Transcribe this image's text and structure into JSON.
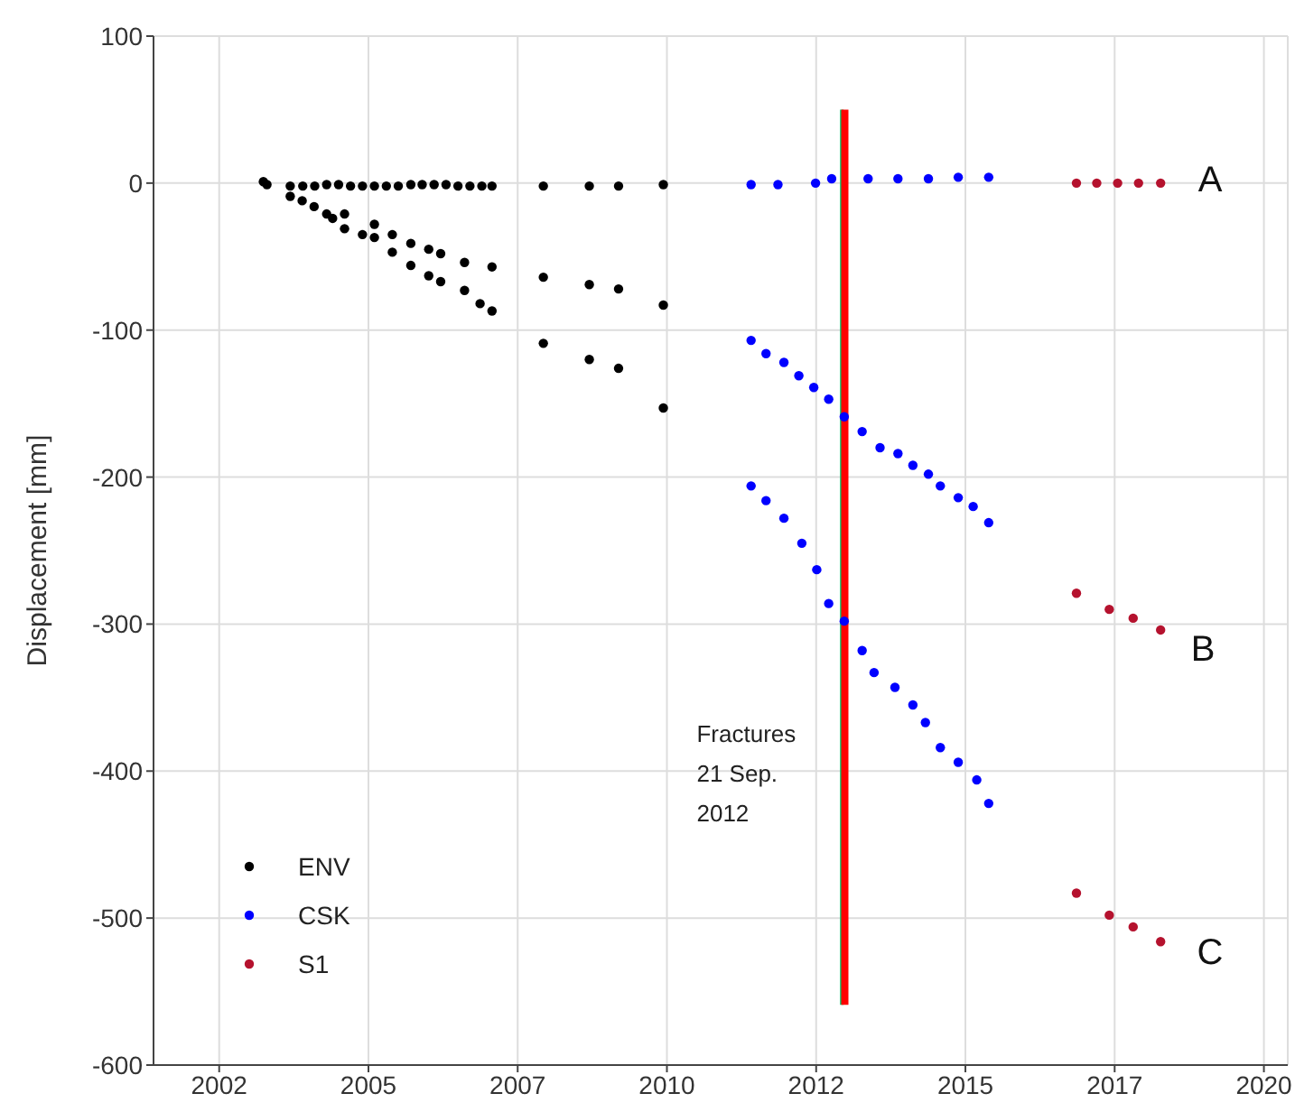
{
  "chart_data": {
    "type": "scatter",
    "ylabel": "Displacement [mm]",
    "xlim": [
      2001.4,
      2020.4
    ],
    "ylim": [
      -600,
      100
    ],
    "xticks": [
      {
        "value": 2002.5,
        "label": "2002"
      },
      {
        "value": 2005,
        "label": "2005"
      },
      {
        "value": 2007.5,
        "label": "2007"
      },
      {
        "value": 2010,
        "label": "2010"
      },
      {
        "value": 2012.5,
        "label": "2012"
      },
      {
        "value": 2015,
        "label": "2015"
      },
      {
        "value": 2017.5,
        "label": "2017"
      },
      {
        "value": 2020,
        "label": "2020"
      }
    ],
    "yticks": [
      -600,
      -500,
      -400,
      -300,
      -200,
      -100,
      0,
      100
    ],
    "grid": true,
    "legend": "bottom left",
    "marker": "circle",
    "series": [
      {
        "name": "ENV",
        "color": "#000000",
        "x": [
          2003.24,
          2003.3,
          2003.69,
          2003.9,
          2004.1,
          2004.3,
          2004.5,
          2004.7,
          2004.9,
          2005.1,
          2005.3,
          2005.5,
          2005.71,
          2005.9,
          2006.1,
          2006.3,
          2006.5,
          2006.7,
          2006.9,
          2007.07,
          2007.93,
          2008.7,
          2009.19,
          2009.94,
          2003.69,
          2003.89,
          2004.09,
          2004.3,
          2004.4,
          2004.6,
          2005.1,
          2005.4,
          2005.71,
          2006.01,
          2006.21,
          2006.61,
          2007.07,
          2007.93,
          2008.7,
          2009.19,
          2009.94,
          2004.6,
          2004.9,
          2005.1,
          2005.4,
          2005.71,
          2006.01,
          2006.21,
          2006.61,
          2006.87,
          2007.07,
          2007.93,
          2008.7,
          2009.19,
          2009.94
        ],
        "values": [
          1,
          -1,
          -2,
          -2,
          -2,
          -1,
          -1,
          -2,
          -2,
          -2,
          -2,
          -2,
          -1,
          -1,
          -1,
          -1,
          -2,
          -2,
          -2,
          -2,
          -2,
          -2,
          -2,
          -1,
          -9,
          -12,
          -16,
          -21,
          -24,
          -21,
          -28,
          -35,
          -41,
          -45,
          -48,
          -54,
          -57,
          -64,
          -69,
          -72,
          -83,
          -31,
          -35,
          -37,
          -47,
          -56,
          -63,
          -67,
          -73,
          -82,
          -87,
          -109,
          -120,
          -126,
          -153
        ]
      },
      {
        "name": "CSK",
        "color": "#0000ff",
        "x": [
          2011.41,
          2011.86,
          2012.49,
          2012.76,
          2013.37,
          2013.87,
          2014.38,
          2014.88,
          2015.39,
          2011.41,
          2011.66,
          2011.96,
          2012.21,
          2012.46,
          2012.71,
          2012.97,
          2013.27,
          2013.57,
          2013.87,
          2014.12,
          2014.38,
          2014.58,
          2014.88,
          2015.13,
          2015.39,
          2011.41,
          2011.66,
          2011.96,
          2012.26,
          2012.51,
          2012.71,
          2012.97,
          2013.27,
          2013.47,
          2013.82,
          2014.12,
          2014.33,
          2014.58,
          2014.88,
          2015.19,
          2015.39
        ],
        "values": [
          -1,
          -1,
          0,
          3,
          3,
          3,
          3,
          4,
          4,
          -107,
          -116,
          -122,
          -131,
          -139,
          -147,
          -159,
          -169,
          -180,
          -184,
          -192,
          -198,
          -206,
          -214,
          -220,
          -231,
          -206,
          -216,
          -228,
          -245,
          -263,
          -286,
          -298,
          -318,
          -333,
          -343,
          -355,
          -367,
          -384,
          -394,
          -406,
          -422
        ]
      },
      {
        "name": "S1",
        "color": "#b5122e",
        "x": [
          2016.86,
          2017.2,
          2017.55,
          2017.9,
          2018.27,
          2016.86,
          2017.41,
          2017.81,
          2018.27,
          2016.86,
          2017.41,
          2017.81,
          2018.27
        ],
        "values": [
          0,
          0,
          0,
          0,
          0,
          -279,
          -290,
          -296,
          -304,
          -483,
          -498,
          -506,
          -516
        ]
      },
      {
        "type": "line",
        "marker": "none",
        "color": "#00c060",
        "x": [
          2012.93,
          2012.93
        ],
        "values": [
          50,
          -559
        ]
      },
      {
        "type": "line",
        "marker": "none",
        "color": "#ff0000",
        "x": [
          2012.98,
          2012.98
        ],
        "values": [
          50,
          -559
        ]
      }
    ],
    "annotations": [
      {
        "text": "Fractures\n21 Sep.\n2012",
        "x": 2012.98,
        "y": -380
      },
      "A",
      "B",
      "C"
    ]
  }
}
